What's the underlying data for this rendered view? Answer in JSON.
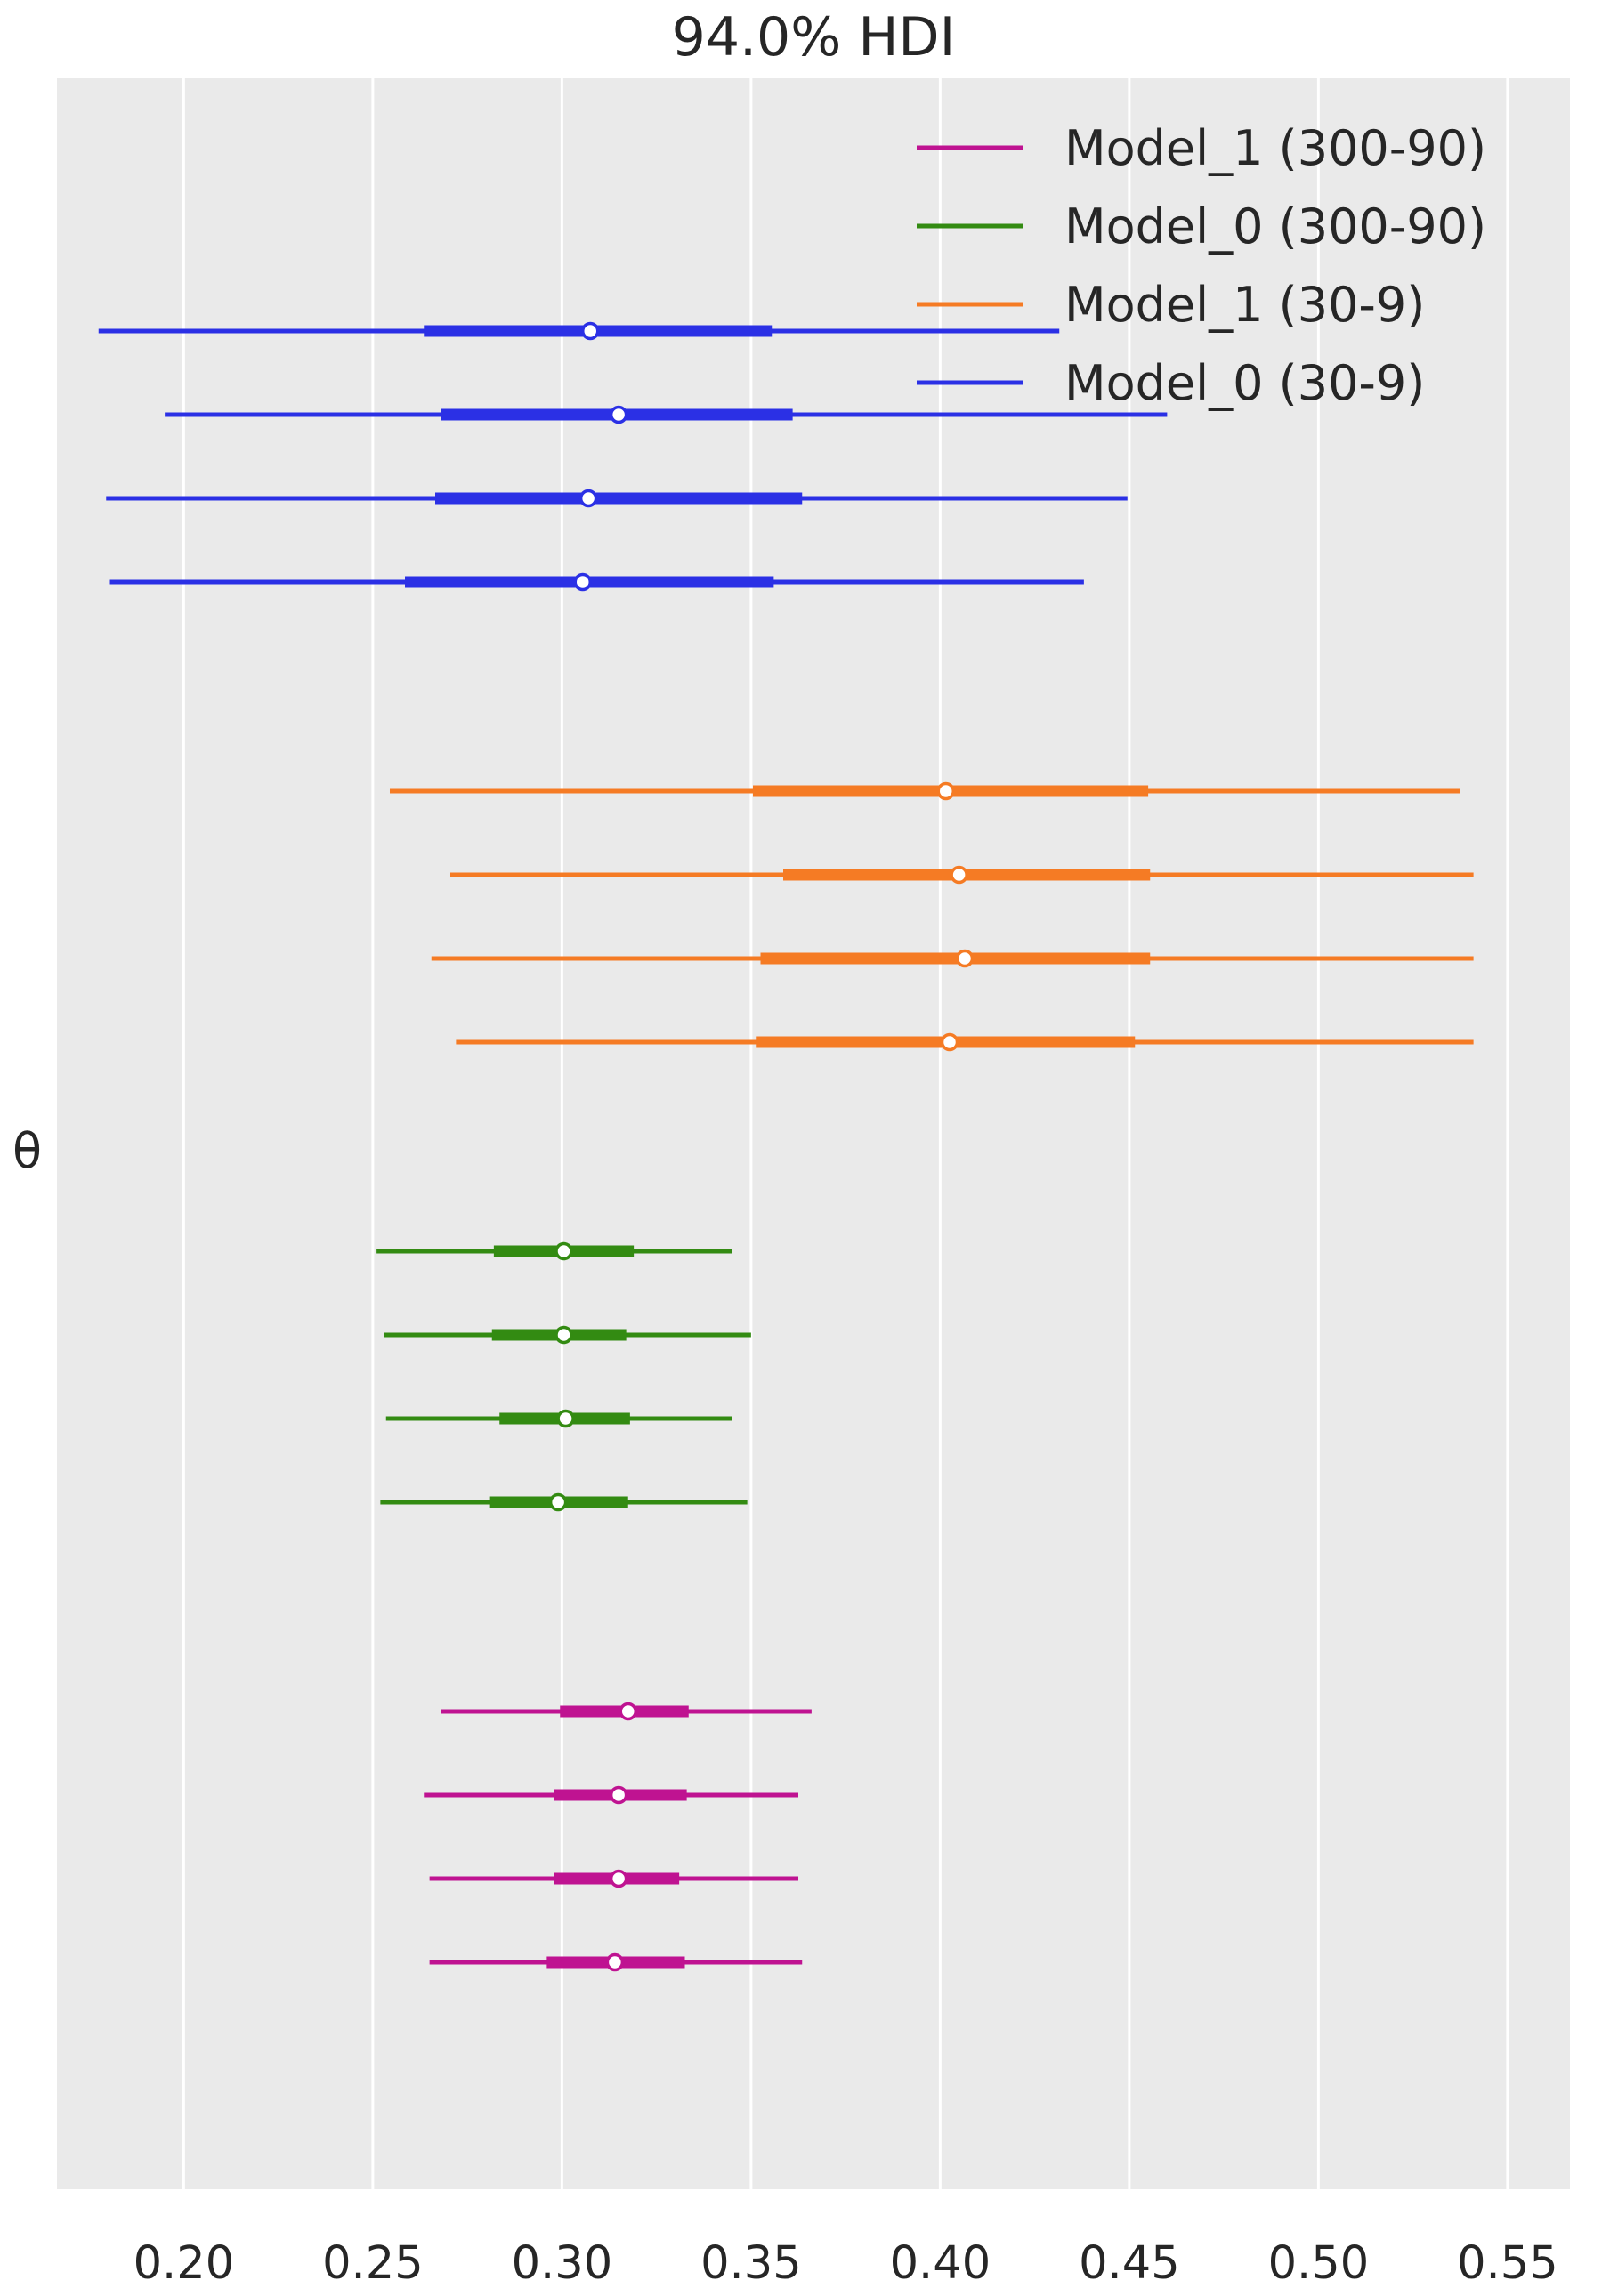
{
  "chart_data": {
    "type": "forest",
    "title": "94.0% HDI",
    "ylabel": "θ",
    "xlim": [
      0.1665,
      0.5665
    ],
    "x_ticks": [
      0.2,
      0.25,
      0.3,
      0.35,
      0.4,
      0.45,
      0.5,
      0.55
    ],
    "x_tick_labels": [
      "0.20",
      "0.25",
      "0.30",
      "0.35",
      "0.40",
      "0.45",
      "0.50",
      "0.55"
    ],
    "grid": "vertical",
    "legend_position": "top-right",
    "legend": [
      {
        "name": "Model_1 (300-90)",
        "color": "#bf1391"
      },
      {
        "name": "Model_0 (300-90)",
        "color": "#338b12"
      },
      {
        "name": "Model_1 (30-9)",
        "color": "#f57b24"
      },
      {
        "name": "Model_0 (30-9)",
        "color": "#2b30e5"
      }
    ],
    "series": [
      {
        "name": "Model_0 (30-9)",
        "color": "#2b30e5",
        "chains": [
          {
            "hdi_94": [
              0.1775,
              0.4315
            ],
            "iqr": [
              0.2635,
              0.3555
            ],
            "median": 0.3075
          },
          {
            "hdi_94": [
              0.195,
              0.46
            ],
            "iqr": [
              0.268,
              0.361
            ],
            "median": 0.315
          },
          {
            "hdi_94": [
              0.1795,
              0.4495
            ],
            "iqr": [
              0.2665,
              0.3635
            ],
            "median": 0.307
          },
          {
            "hdi_94": [
              0.1805,
              0.438
            ],
            "iqr": [
              0.2585,
              0.356
            ],
            "median": 0.3055
          }
        ]
      },
      {
        "name": "Model_1 (30-9)",
        "color": "#f57b24",
        "chains": [
          {
            "hdi_94": [
              0.2545,
              0.5375
            ],
            "iqr": [
              0.3505,
              0.455
            ],
            "median": 0.4015
          },
          {
            "hdi_94": [
              0.2705,
              0.541
            ],
            "iqr": [
              0.3585,
              0.4555
            ],
            "median": 0.405
          },
          {
            "hdi_94": [
              0.2655,
              0.541
            ],
            "iqr": [
              0.3525,
              0.4555
            ],
            "median": 0.4065
          },
          {
            "hdi_94": [
              0.272,
              0.541
            ],
            "iqr": [
              0.3515,
              0.4515
            ],
            "median": 0.4025
          }
        ]
      },
      {
        "name": "Model_0 (300-90)",
        "color": "#338b12",
        "chains": [
          {
            "hdi_94": [
              0.251,
              0.345
            ],
            "iqr": [
              0.282,
              0.319
            ],
            "median": 0.3005
          },
          {
            "hdi_94": [
              0.253,
              0.35
            ],
            "iqr": [
              0.2815,
              0.317
            ],
            "median": 0.3005
          },
          {
            "hdi_94": [
              0.2535,
              0.345
            ],
            "iqr": [
              0.2835,
              0.318
            ],
            "median": 0.301
          },
          {
            "hdi_94": [
              0.252,
              0.349
            ],
            "iqr": [
              0.281,
              0.3175
            ],
            "median": 0.299
          }
        ]
      },
      {
        "name": "Model_1 (300-90)",
        "color": "#bf1391",
        "chains": [
          {
            "hdi_94": [
              0.268,
              0.366
            ],
            "iqr": [
              0.2995,
              0.3335
            ],
            "median": 0.3175
          },
          {
            "hdi_94": [
              0.2635,
              0.3625
            ],
            "iqr": [
              0.298,
              0.333
            ],
            "median": 0.315
          },
          {
            "hdi_94": [
              0.265,
              0.3625
            ],
            "iqr": [
              0.298,
              0.331
            ],
            "median": 0.315
          },
          {
            "hdi_94": [
              0.265,
              0.3635
            ],
            "iqr": [
              0.296,
              0.3325
            ],
            "median": 0.314
          }
        ]
      }
    ]
  }
}
